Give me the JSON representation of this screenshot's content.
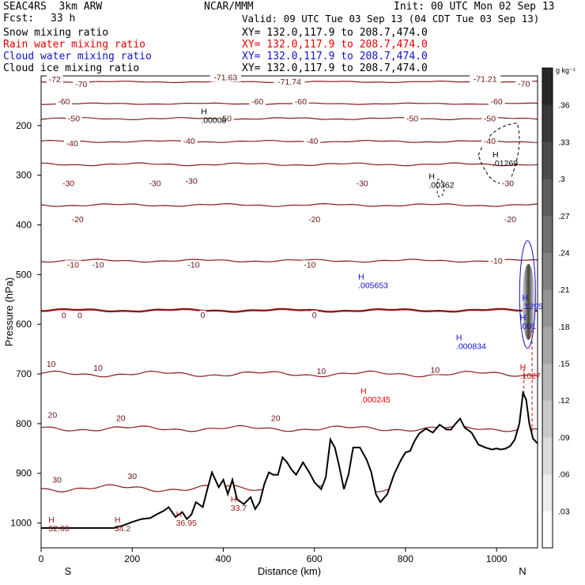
{
  "header": {
    "model": "SEAC4RS  3km ARW",
    "fcst_label": "Fcst:",
    "fcst_value": "33 h",
    "center": "NCAR/MMM",
    "init": "Init: 00 UTC Mon 02 Sep 13",
    "valid": "Valid: 09 UTC Tue 03 Sep 13 (04 CDT Tue 03 Sep 13)",
    "fields": [
      {
        "name": "Snow mixing ratio",
        "xy": "XY= 132.0,117.9 to 208.7,474.0",
        "color": "#000000"
      },
      {
        "name": "Rain water mixing ratio",
        "xy": "XY= 132.0,117.9 to 208.7,474.0",
        "color": "#e00000"
      },
      {
        "name": "Cloud water mixing ratio",
        "xy": "XY= 132.0,117.9 to 208.7,474.0",
        "color": "#1010d0"
      },
      {
        "name": "Cloud ice mixing ratio",
        "xy": "XY= 132.0,117.9 to 208.7,474.0",
        "color": "#000000"
      }
    ]
  },
  "colorbar": {
    "unit": "g kg⁻¹",
    "ticks": [
      ".36",
      ".33",
      ".3",
      ".27",
      ".24",
      ".21",
      ".18",
      ".15",
      ".12",
      ".09",
      ".06",
      ".03"
    ],
    "range": [
      0,
      0.39
    ]
  },
  "chart_data": {
    "type": "line",
    "title": "",
    "xlabel": "Distance (km)",
    "ylabel": "Pressure (hPa)",
    "xlim": [
      0,
      1090
    ],
    "ylim": [
      1050,
      100
    ],
    "x_ticks": [
      0,
      200,
      400,
      600,
      800,
      1000
    ],
    "y_ticks": [
      200,
      300,
      400,
      500,
      600,
      700,
      800,
      900,
      1000
    ],
    "left_end_label": "S",
    "right_end_label": "N",
    "temperature_contours": [
      {
        "value": -70,
        "p": 112,
        "wave": 2
      },
      {
        "value": -60,
        "p": 156,
        "wave": 2
      },
      {
        "value": -50,
        "p": 186,
        "wave": 3
      },
      {
        "value": -40,
        "p": 232,
        "wave": 3
      },
      {
        "value": -30,
        "p": 278,
        "wave": 4
      },
      {
        "value": -20,
        "p": 360,
        "wave": 4
      },
      {
        "value": -10,
        "p": 472,
        "wave": 4
      },
      {
        "value": 0,
        "p": 572,
        "wave": 4
      },
      {
        "value": 10,
        "p": 700,
        "wave": 8
      },
      {
        "value": 20,
        "p": 810,
        "wave": 8
      },
      {
        "value": 30,
        "p": 930,
        "wave": 10
      }
    ],
    "contour_labels": [
      {
        "text": "-72",
        "x": 30,
        "p": 111
      },
      {
        "text": "-70",
        "x": 88,
        "p": 121
      },
      {
        "text": "-71.63",
        "x": 405,
        "p": 107
      },
      {
        "text": "-71.74",
        "x": 545,
        "p": 116
      },
      {
        "text": "-71.21",
        "x": 975,
        "p": 110
      },
      {
        "text": "-70",
        "x": 1060,
        "p": 120
      },
      {
        "text": "-60",
        "x": 50,
        "p": 156
      },
      {
        "text": "-60",
        "x": 475,
        "p": 156
      },
      {
        "text": "-60",
        "x": 570,
        "p": 156
      },
      {
        "text": "-60",
        "x": 1000,
        "p": 156
      },
      {
        "text": "-50",
        "x": 72,
        "p": 190
      },
      {
        "text": "-50",
        "x": 405,
        "p": 190
      },
      {
        "text": "-50",
        "x": 815,
        "p": 190
      },
      {
        "text": "-50",
        "x": 985,
        "p": 190
      },
      {
        "text": "-40",
        "x": 68,
        "p": 240
      },
      {
        "text": "-40",
        "x": 325,
        "p": 235
      },
      {
        "text": "-40",
        "x": 595,
        "p": 235
      },
      {
        "text": "-40",
        "x": 985,
        "p": 235
      },
      {
        "text": "-30",
        "x": 60,
        "p": 320
      },
      {
        "text": "-30",
        "x": 250,
        "p": 320
      },
      {
        "text": "-30",
        "x": 330,
        "p": 316
      },
      {
        "text": "-30",
        "x": 705,
        "p": 320
      },
      {
        "text": "-30",
        "x": 1025,
        "p": 320
      },
      {
        "text": "-20",
        "x": 80,
        "p": 393
      },
      {
        "text": "-20",
        "x": 600,
        "p": 393
      },
      {
        "text": "-20",
        "x": 1030,
        "p": 393
      },
      {
        "text": "-10",
        "x": 70,
        "p": 484
      },
      {
        "text": "-10",
        "x": 125,
        "p": 484
      },
      {
        "text": "-10",
        "x": 335,
        "p": 484
      },
      {
        "text": "-10",
        "x": 590,
        "p": 484
      },
      {
        "text": "-10",
        "x": 1000,
        "p": 476
      },
      {
        "text": "0",
        "x": 50,
        "p": 586
      },
      {
        "text": "0",
        "x": 85,
        "p": 586
      },
      {
        "text": "0",
        "x": 355,
        "p": 585
      },
      {
        "text": "0",
        "x": 600,
        "p": 585
      },
      {
        "text": "10",
        "x": 22,
        "p": 684
      },
      {
        "text": "10",
        "x": 125,
        "p": 692
      },
      {
        "text": "10",
        "x": 615,
        "p": 698
      },
      {
        "text": "10",
        "x": 865,
        "p": 696
      },
      {
        "text": "20",
        "x": 25,
        "p": 787
      },
      {
        "text": "20",
        "x": 175,
        "p": 793
      },
      {
        "text": "20",
        "x": 515,
        "p": 793
      },
      {
        "text": "30",
        "x": 35,
        "p": 917
      },
      {
        "text": "30",
        "x": 200,
        "p": 910
      }
    ],
    "maxima": [
      {
        "text": ".00008",
        "x": 365,
        "p": 185,
        "color": "#000000"
      },
      {
        "text": ".00362",
        "x": 865,
        "p": 316,
        "color": "#000000"
      },
      {
        "text": ".01269",
        "x": 1005,
        "p": 272,
        "color": "#000000"
      },
      {
        "text": ".005653",
        "x": 710,
        "p": 518,
        "color": "#1010d0"
      },
      {
        "text": ".1295",
        "x": 1070,
        "p": 560,
        "color": "#1010d0"
      },
      {
        "text": ".001",
        "x": 1065,
        "p": 600,
        "color": "#1010d0"
      },
      {
        "text": ".000834",
        "x": 925,
        "p": 640,
        "color": "#1010d0"
      },
      {
        "text": ".1027",
        "x": 1065,
        "p": 700,
        "color": "#e00000"
      },
      {
        "text": ".000245",
        "x": 715,
        "p": 748,
        "color": "#e00000"
      },
      {
        "text": "32.66",
        "x": 30,
        "p": 1007,
        "color": "#8b1a1a"
      },
      {
        "text": "34.2",
        "x": 175,
        "p": 1007,
        "color": "#8b1a1a"
      },
      {
        "text": "36.95",
        "x": 310,
        "p": 996,
        "color": "#8b1a1a"
      },
      {
        "text": "33.7",
        "x": 430,
        "p": 966,
        "color": "#8b1a1a"
      }
    ],
    "terrain": {
      "x": [
        0,
        160,
        180,
        200,
        220,
        240,
        255,
        270,
        280,
        295,
        310,
        320,
        330,
        340,
        355,
        365,
        375,
        390,
        400,
        410,
        420,
        430,
        445,
        460,
        470,
        480,
        490,
        500,
        510,
        520,
        530,
        540,
        550,
        560,
        575,
        590,
        600,
        615,
        625,
        635,
        645,
        655,
        665,
        675,
        685,
        700,
        715,
        725,
        735,
        745,
        760,
        775,
        790,
        800,
        810,
        820,
        830,
        845,
        860,
        875,
        890,
        900,
        910,
        920,
        930,
        945,
        960,
        975,
        990,
        1000,
        1010,
        1020,
        1030,
        1040,
        1050,
        1058,
        1065,
        1072,
        1080,
        1090
      ],
      "p": [
        1010,
        1010,
        1005,
        998,
        992,
        990,
        982,
        975,
        968,
        988,
        978,
        992,
        983,
        958,
        968,
        932,
        898,
        928,
        913,
        942,
        913,
        952,
        962,
        948,
        972,
        958,
        922,
        898,
        903,
        903,
        868,
        878,
        893,
        903,
        878,
        900,
        918,
        932,
        908,
        832,
        848,
        888,
        932,
        902,
        848,
        848,
        873,
        898,
        942,
        958,
        942,
        902,
        873,
        858,
        855,
        835,
        820,
        810,
        818,
        802,
        812,
        812,
        800,
        790,
        808,
        818,
        842,
        848,
        852,
        850,
        852,
        850,
        845,
        832,
        800,
        738,
        752,
        800,
        830,
        840
      ]
    }
  }
}
